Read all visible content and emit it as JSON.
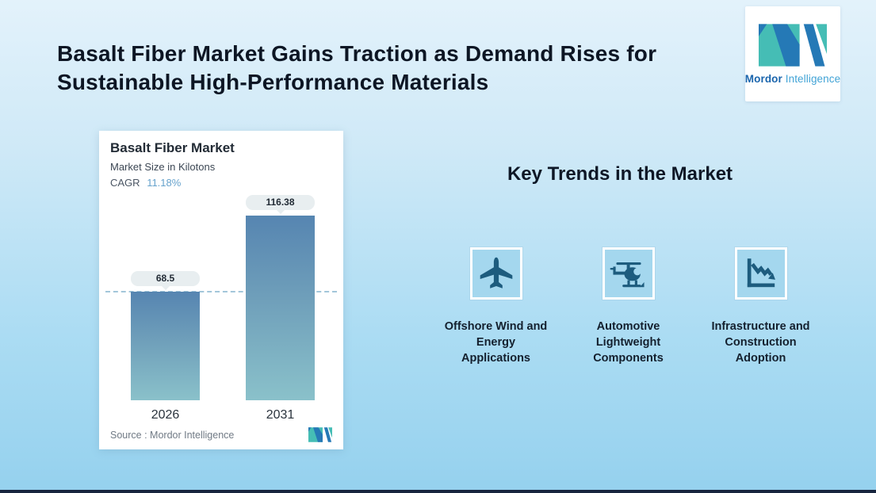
{
  "page": {
    "title": "Basalt Fiber Market Gains Traction as Demand Rises for\nSustainable High-Performance Materials"
  },
  "brand": {
    "name_bold": "Mordor",
    "name_light": "Intelligence",
    "mark_teal": "#45bdb5",
    "mark_blue": "#2579b6"
  },
  "chart_card": {
    "title": "Basalt Fiber Market",
    "subtitle": "Market Size in Kilotons",
    "cagr_label": "CAGR",
    "cagr_value": "11.18%",
    "source_label": "Source :",
    "source_value": "Mordor Intelligence"
  },
  "chart_data": {
    "type": "bar",
    "title": "Basalt Fiber Market",
    "subtitle": "Market Size in Kilotons",
    "unit": "Kilotons",
    "cagr": "11.18%",
    "categories": [
      "2026",
      "2031"
    ],
    "values": [
      68.5,
      116.38
    ],
    "ylim": [
      0,
      120
    ],
    "grid": false,
    "reference_line": "dashed horizontal line at first value (68.5)",
    "bar_gradient_top": "#5685b1",
    "bar_gradient_bottom": "#8ac1ca",
    "value_label_bg": "#e8eef0"
  },
  "key_trends": {
    "heading": "Key Trends in the Market",
    "items": [
      {
        "icon": "airplane-icon",
        "label": "Offshore Wind and\nEnergy\nApplications"
      },
      {
        "icon": "helicopter-icon",
        "label": "Automotive\nLightweight\nComponents"
      },
      {
        "icon": "declining-line-chart-icon",
        "label": "Infrastructure and\nConstruction\nAdoption"
      }
    ]
  },
  "colors": {
    "background_top": "#e3f2fb",
    "background_bottom": "#95d1ee",
    "icon_glyph": "#1d5c7e",
    "icon_tile_bg": "#a4d7ee",
    "cagr_accent": "#66a2cc",
    "bottom_strip": "#17253e"
  }
}
